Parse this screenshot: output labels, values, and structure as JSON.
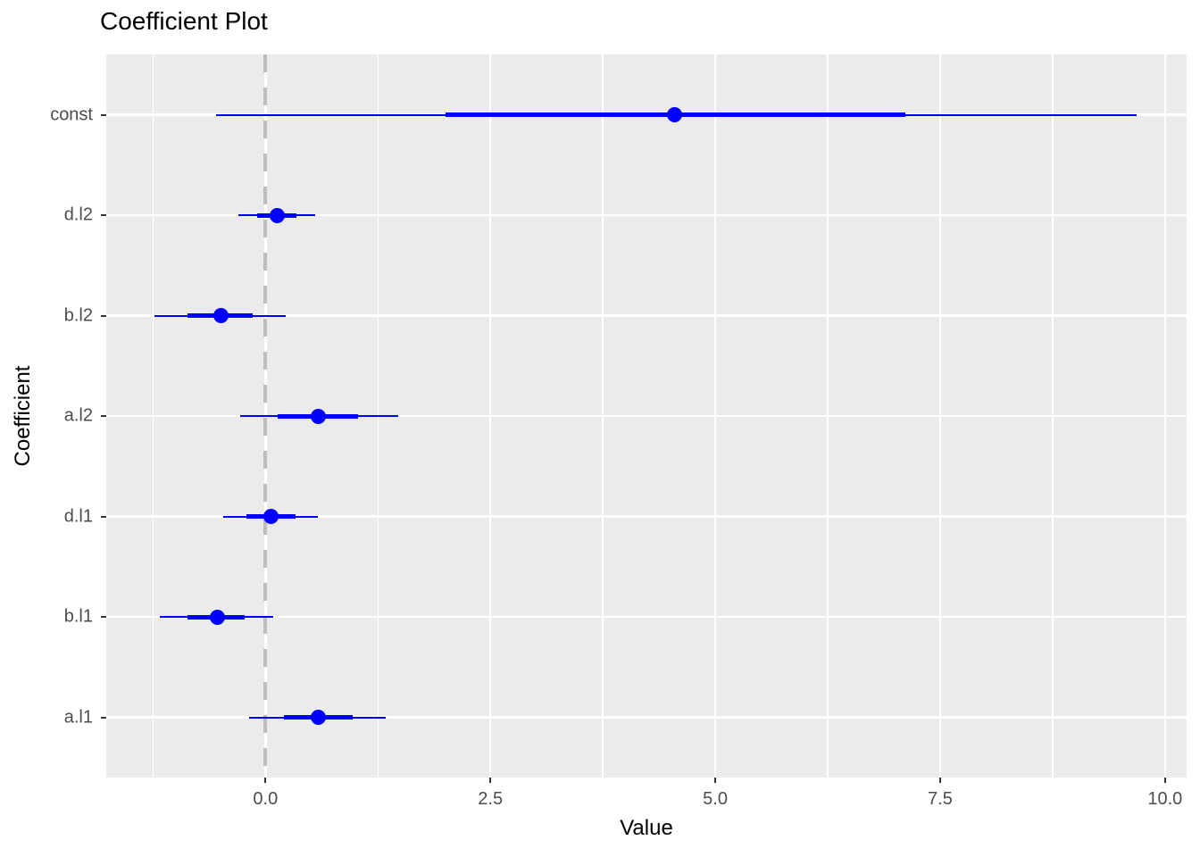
{
  "title": "Coefficient Plot",
  "axes": {
    "x_label": "Value",
    "y_label": "Coefficient"
  },
  "chart_data": {
    "type": "scatter",
    "subtype": "coefficient-dot-whisker-plot",
    "title": "Coefficient Plot",
    "xlabel": "Value",
    "ylabel": "Coefficient",
    "orientation": "horizontal",
    "xlim": [
      -1.77,
      10.24
    ],
    "x_major_ticks": [
      0.0,
      2.5,
      5.0,
      7.5,
      10.0
    ],
    "x_tick_labels": [
      "0.0",
      "2.5",
      "5.0",
      "7.5",
      "10.0"
    ],
    "x_minor_gridlines": [
      -1.25,
      1.25,
      3.75,
      6.25,
      8.75
    ],
    "grid": true,
    "legend": "none",
    "zero_reference_line": {
      "x": 0,
      "linetype": "dashed",
      "color": "#BEBEBE"
    },
    "categories_top_to_bottom": [
      "const",
      "d.l2",
      "b.l2",
      "a.l2",
      "d.l1",
      "b.l1",
      "a.l1"
    ],
    "series": [
      {
        "term": "const",
        "estimate": 4.55,
        "inner_ci": [
          2.0,
          7.11
        ],
        "outer_ci": [
          -0.55,
          9.68
        ]
      },
      {
        "term": "d.l2",
        "estimate": 0.13,
        "inner_ci": [
          -0.09,
          0.34
        ],
        "outer_ci": [
          -0.3,
          0.55
        ]
      },
      {
        "term": "b.l2",
        "estimate": -0.49,
        "inner_ci": [
          -0.87,
          -0.14
        ],
        "outer_ci": [
          -1.23,
          0.23
        ]
      },
      {
        "term": "a.l2",
        "estimate": 0.59,
        "inner_ci": [
          0.14,
          1.03
        ],
        "outer_ci": [
          -0.28,
          1.48
        ]
      },
      {
        "term": "d.l1",
        "estimate": 0.06,
        "inner_ci": [
          -0.21,
          0.33
        ],
        "outer_ci": [
          -0.47,
          0.58
        ]
      },
      {
        "term": "b.l1",
        "estimate": -0.53,
        "inner_ci": [
          -0.87,
          -0.23
        ],
        "outer_ci": [
          -1.17,
          0.09
        ]
      },
      {
        "term": "a.l1",
        "estimate": 0.59,
        "inner_ci": [
          0.21,
          0.97
        ],
        "outer_ci": [
          -0.18,
          1.34
        ]
      }
    ],
    "colors": {
      "point": "#0000FF",
      "whisker": "#0000FF",
      "panel_background": "#EBEBEB",
      "gridline": "#FFFFFF",
      "dashed_line": "#BEBEBE",
      "tick_label": "#4D4D4D",
      "axis_title": "#000000"
    }
  }
}
